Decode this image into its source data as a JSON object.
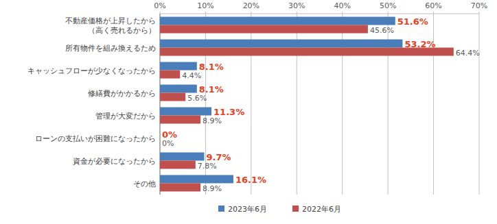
{
  "chart_data": {
    "type": "bar",
    "orientation": "horizontal",
    "categories": [
      "不動産価格が上昇したから\n（高く売れるから）",
      "所有物件を組み換えるため",
      "キャッシュフローが少なくなったから",
      "修繕費がかかるから",
      "管理が大変だから",
      "ローンの支払いが困難になったから",
      "資金が必要になったから",
      "その他"
    ],
    "series": [
      {
        "name": "2023年6月",
        "color": "#4a7ebb",
        "values": [
          51.6,
          53.2,
          8.1,
          8.1,
          11.3,
          0,
          9.7,
          16.1
        ],
        "value_labels": [
          "51.6%",
          "53.2%",
          "8.1%",
          "8.1%",
          "11.3%",
          "0%",
          "9.7%",
          "16.1%"
        ]
      },
      {
        "name": "2022年6月",
        "color": "#c0504d",
        "values": [
          45.6,
          64.4,
          4.4,
          5.6,
          8.9,
          0,
          7.8,
          8.9
        ],
        "value_labels": [
          "45.6%",
          "64.4%",
          "4.4%",
          "5.6%",
          "8.9%",
          "0%",
          "7.8%",
          "8.9%"
        ]
      }
    ],
    "xlim": [
      0,
      70
    ],
    "xticks": [
      {
        "value": 0,
        "label": "0%"
      },
      {
        "value": 10,
        "label": "10%"
      },
      {
        "value": 20,
        "label": "20%"
      },
      {
        "value": 30,
        "label": "30%"
      },
      {
        "value": 40,
        "label": "40%"
      },
      {
        "value": 50,
        "label": "50%"
      },
      {
        "value": 60,
        "label": "60%"
      },
      {
        "value": 70,
        "label": "70%"
      }
    ],
    "grid": true,
    "legend": "bottom",
    "data_labels": true
  }
}
